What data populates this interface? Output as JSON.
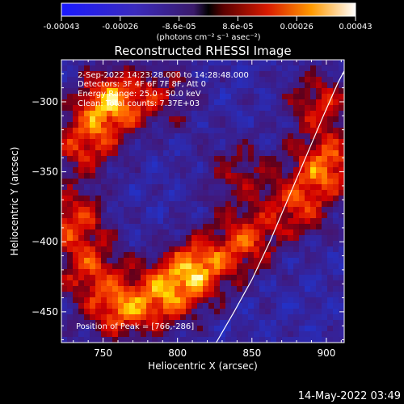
{
  "colorbar": {
    "ticks": [
      "-0.00043",
      "-0.00026",
      "-8.6e-05",
      "8.6e-05",
      "0.00026",
      "0.00043"
    ],
    "unit_label": "(photons cm⁻² s⁻¹ asec⁻²)",
    "range": [
      -0.00043,
      0.00043
    ]
  },
  "info": {
    "time_range": "2-Sep-2022 14:23:28.000 to 14:28:48.000",
    "detectors": "Detectors: 3F 4F 6F 7F 8F, Att 0",
    "energy_range": "Energy Range: 25.0 - 50.0 keV",
    "counts": "Clean: Total counts: 7.37E+03",
    "peak": "Position of Peak = [766,-286]"
  },
  "footer": {
    "timestamp": "14-May-2022 03:49"
  },
  "chart_data": {
    "type": "heatmap",
    "title": "Reconstructed RHESSI Image",
    "xlabel": "Heliocentric X (arcsec)",
    "ylabel": "Heliocentric Y (arcsec)",
    "xlim": [
      722,
      912
    ],
    "ylim": [
      -472,
      -270
    ],
    "xticks": [
      750,
      800,
      850,
      900
    ],
    "yticks": [
      -300,
      -350,
      -400,
      -450
    ],
    "xtick_labels": [
      "750",
      "800",
      "850",
      "900"
    ],
    "ytick_labels": [
      "−300",
      "−350",
      "−400",
      "−450"
    ],
    "grid": false,
    "limb_curve": {
      "x": [
        826,
        838,
        850,
        862,
        874,
        886,
        898,
        908,
        912
      ],
      "y": [
        -472,
        -450,
        -427,
        -400,
        -370,
        -340,
        -310,
        -286,
        -278
      ]
    },
    "sources": [
      {
        "x": 755,
        "y": -300,
        "peak": 0.95
      },
      {
        "x": 738,
        "y": -330,
        "peak": 0.7
      },
      {
        "x": 730,
        "y": -385,
        "peak": 0.7
      },
      {
        "x": 740,
        "y": -420,
        "peak": 0.6
      },
      {
        "x": 760,
        "y": -448,
        "peak": 0.75
      },
      {
        "x": 790,
        "y": -440,
        "peak": 0.7
      },
      {
        "x": 812,
        "y": -420,
        "peak": 0.95
      },
      {
        "x": 845,
        "y": -400,
        "peak": 0.7
      },
      {
        "x": 880,
        "y": -375,
        "peak": 0.65
      },
      {
        "x": 900,
        "y": -345,
        "peak": 0.85
      },
      {
        "x": 895,
        "y": -300,
        "peak": 0.6
      },
      {
        "x": 790,
        "y": -295,
        "peak": 0.45
      },
      {
        "x": 840,
        "y": -350,
        "peak": 0.45
      }
    ]
  }
}
